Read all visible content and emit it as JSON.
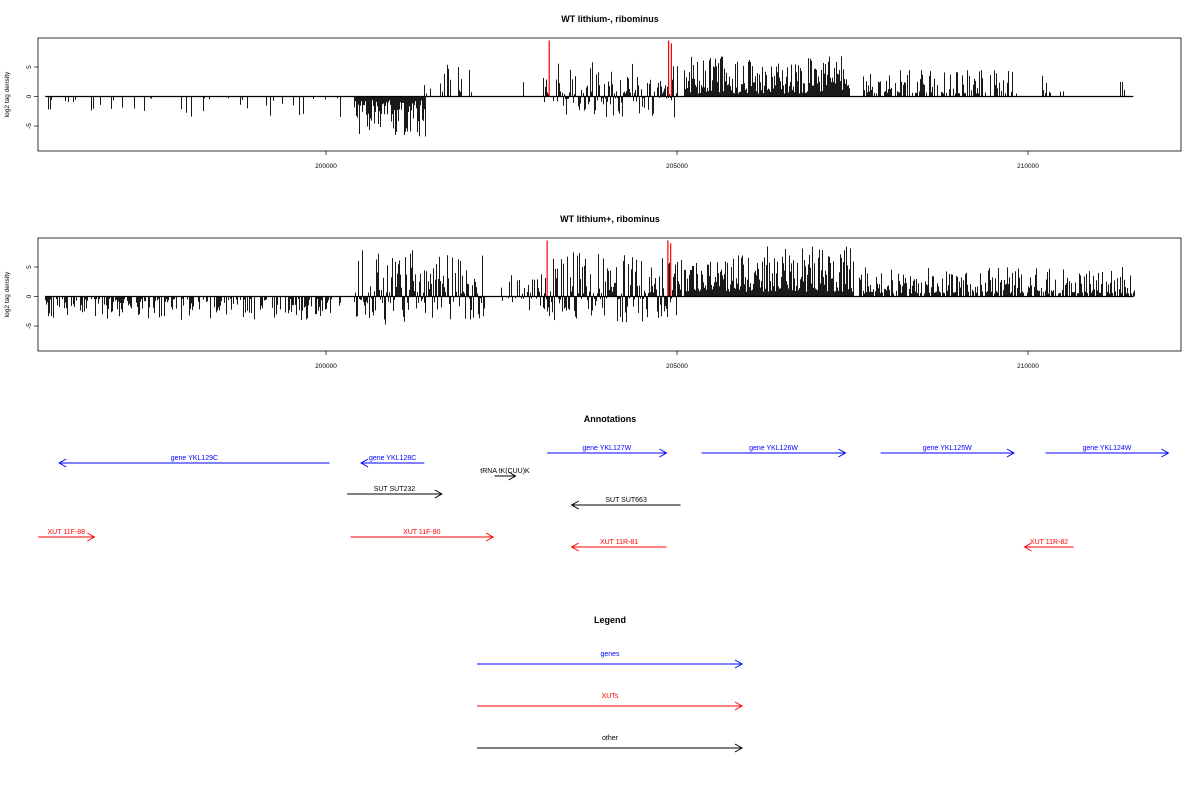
{
  "chart_data": [
    {
      "type": "bar",
      "title": "WT lithium-, ribominus",
      "ylabel": "log2 tag density",
      "xlabel": "",
      "x_ticks": [
        200000,
        205000,
        210000
      ],
      "y_ticks": [
        -5,
        0,
        5
      ],
      "xlim": [
        195800,
        212000
      ],
      "ylim": [
        -9,
        9
      ],
      "highlight_color": "#ff0000",
      "regions": [
        {
          "start": 196000,
          "end": 200200,
          "density": 0.12,
          "mode": "neg",
          "min": 0.3,
          "max": 3.5,
          "seed": 11
        },
        {
          "start": 200400,
          "end": 201400,
          "density": 1.0,
          "mode": "neg",
          "min": 0.6,
          "max": 6.8,
          "seed": 12
        },
        {
          "start": 201400,
          "end": 202200,
          "density": 0.25,
          "mode": "pos",
          "min": 0.5,
          "max": 5.5,
          "seed": 13
        },
        {
          "start": 202600,
          "end": 203100,
          "density": 0.05,
          "mode": "pos",
          "min": 0.5,
          "max": 3.0,
          "seed": 14
        },
        {
          "start": 203100,
          "end": 205000,
          "density": 0.85,
          "mode": "mixed",
          "min": 0.4,
          "max": 6.0,
          "seed": 15
        },
        {
          "start": 205100,
          "end": 207450,
          "density": 1.0,
          "mode": "pos",
          "min": 0.5,
          "max": 7.0,
          "seed": 16
        },
        {
          "start": 207650,
          "end": 209850,
          "density": 0.6,
          "mode": "pos",
          "min": 0.5,
          "max": 4.5,
          "seed": 17
        },
        {
          "start": 210200,
          "end": 210500,
          "density": 0.3,
          "mode": "pos",
          "min": 0.5,
          "max": 4.0,
          "seed": 18
        },
        {
          "start": 211300,
          "end": 211400,
          "density": 0.1,
          "mode": "pos",
          "min": 1.0,
          "max": 3.0,
          "seed": 19
        }
      ],
      "highlights": [
        {
          "x": 203180,
          "value": 9.5
        },
        {
          "x": 204880,
          "value": 9.5
        },
        {
          "x": 204920,
          "value": 9.0
        }
      ]
    },
    {
      "type": "bar",
      "title": "WT lithium+, ribominus",
      "ylabel": "log2 tag density",
      "xlabel": "",
      "x_ticks": [
        200000,
        205000,
        210000
      ],
      "y_ticks": [
        -5,
        0,
        5
      ],
      "xlim": [
        195800,
        212000
      ],
      "ylim": [
        -9,
        9
      ],
      "highlight_color": "#ff0000",
      "regions": [
        {
          "start": 196000,
          "end": 200200,
          "density": 0.55,
          "mode": "neg",
          "min": 0.4,
          "max": 4.0,
          "seed": 21
        },
        {
          "start": 200400,
          "end": 201400,
          "density": 1.0,
          "mode": "mixed",
          "min": 0.6,
          "max": 8.0,
          "seed": 22
        },
        {
          "start": 201400,
          "end": 202250,
          "density": 0.9,
          "mode": "mixed",
          "min": 0.5,
          "max": 7.0,
          "seed": 23
        },
        {
          "start": 202500,
          "end": 203100,
          "density": 0.6,
          "mode": "mixed",
          "min": 0.5,
          "max": 4.0,
          "seed": 24
        },
        {
          "start": 203100,
          "end": 205050,
          "density": 1.0,
          "mode": "mixed",
          "min": 0.5,
          "max": 7.5,
          "seed": 25
        },
        {
          "start": 205100,
          "end": 207500,
          "density": 1.0,
          "mode": "pos",
          "min": 0.8,
          "max": 8.5,
          "seed": 26
        },
        {
          "start": 207600,
          "end": 211500,
          "density": 0.8,
          "mode": "pos",
          "min": 0.5,
          "max": 5.0,
          "seed": 27
        }
      ],
      "highlights": [
        {
          "x": 203150,
          "value": 9.5
        },
        {
          "x": 204870,
          "value": 9.5
        },
        {
          "x": 204910,
          "value": 9.0
        }
      ]
    }
  ],
  "annotations": {
    "title": "Annotations",
    "features": [
      {
        "label": "gene YKL129C",
        "start": 196200,
        "end": 200050,
        "strand": "-",
        "row": 1,
        "color": "#0000ff"
      },
      {
        "label": "gene YKL128C",
        "start": 200500,
        "end": 201400,
        "strand": "-",
        "row": 1,
        "color": "#0000ff"
      },
      {
        "label": "gene YKL127W",
        "start": 203150,
        "end": 204850,
        "strand": "+",
        "row": 0,
        "color": "#0000ff"
      },
      {
        "label": "gene YKL126W",
        "start": 205350,
        "end": 207400,
        "strand": "+",
        "row": 0,
        "color": "#0000ff"
      },
      {
        "label": "gene YKL125W",
        "start": 207900,
        "end": 209800,
        "strand": "+",
        "row": 0,
        "color": "#0000ff"
      },
      {
        "label": "gene YKL124W",
        "start": 210250,
        "end": 212000,
        "strand": "+",
        "row": 0,
        "color": "#0000ff"
      },
      {
        "label": "tRNA tK(CUU)K",
        "start": 202400,
        "end": 202700,
        "strand": "+",
        "row": 2,
        "color": "#000000"
      },
      {
        "label": "SUT SUT232",
        "start": 200300,
        "end": 201650,
        "strand": "+",
        "row": 3,
        "color": "#000000"
      },
      {
        "label": "SUT SUT663",
        "start": 203500,
        "end": 205050,
        "strand": "-",
        "row": 4,
        "color": "#000000"
      },
      {
        "label": "XUT 11F-88",
        "start": 195900,
        "end": 196700,
        "strand": "+",
        "row": 5,
        "color": "#ff0000"
      },
      {
        "label": "XUT 11F-90",
        "start": 200350,
        "end": 202380,
        "strand": "+",
        "row": 5,
        "color": "#ff0000"
      },
      {
        "label": "XUT 11R-81",
        "start": 203500,
        "end": 204850,
        "strand": "-",
        "row": 6,
        "color": "#ff0000"
      },
      {
        "label": "XUT 11R-82",
        "start": 209950,
        "end": 210650,
        "strand": "-",
        "row": 6,
        "color": "#ff0000"
      }
    ]
  },
  "legend": {
    "title": "Legend",
    "items": [
      {
        "label": "genes",
        "color": "#0000ff"
      },
      {
        "label": "XUTs",
        "color": "#ff0000"
      },
      {
        "label": "other",
        "color": "#000000"
      }
    ]
  }
}
